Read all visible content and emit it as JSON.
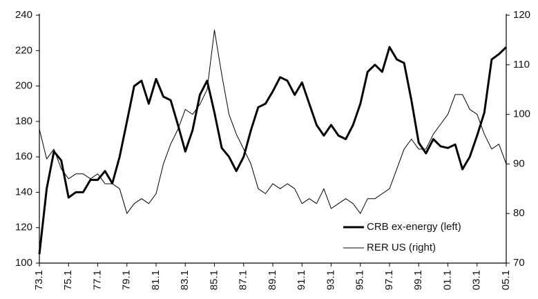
{
  "chart_data": {
    "type": "line",
    "categories": [
      "73.1",
      null,
      null,
      null,
      "75.1",
      null,
      null,
      null,
      "77.1",
      null,
      null,
      null,
      "79.1",
      null,
      null,
      null,
      "81.1",
      null,
      null,
      null,
      "83.1",
      null,
      null,
      null,
      "85.1",
      null,
      null,
      null,
      "87.1",
      null,
      null,
      null,
      "89.1",
      null,
      null,
      null,
      "91.1",
      null,
      null,
      null,
      "93.1",
      null,
      null,
      null,
      "95.1",
      null,
      null,
      null,
      "97.1",
      null,
      null,
      null,
      "99.1",
      null,
      null,
      null,
      "01.1",
      null,
      null,
      null,
      "03.1",
      null,
      null,
      null,
      "05.1"
    ],
    "series": [
      {
        "name": "CRB ex-energy (left)",
        "color": "#000000",
        "line_width": 3,
        "values": [
          105,
          142,
          163,
          158,
          137,
          140,
          140,
          147,
          147,
          152,
          145,
          160,
          180,
          200,
          203,
          190,
          204,
          194,
          192,
          178,
          163,
          175,
          195,
          203,
          185,
          165,
          160,
          152,
          160,
          175,
          188,
          190,
          197,
          205,
          203,
          195,
          202,
          190,
          178,
          172,
          178,
          172,
          170,
          178,
          190,
          208,
          212,
          208,
          222,
          215,
          213,
          192,
          168,
          162,
          170,
          166,
          165,
          167,
          153,
          160,
          172,
          185,
          215,
          218,
          222
        ]
      },
      {
        "name": "RER US (right)",
        "color": "#000000",
        "line_width": 1,
        "axis": "y2",
        "values": [
          97,
          91,
          93,
          89,
          87,
          88,
          88,
          87,
          88,
          86,
          86,
          85,
          80,
          82,
          83,
          82,
          84,
          90,
          94,
          97,
          101,
          100,
          102,
          105,
          117,
          108,
          100,
          96,
          93,
          90,
          85,
          84,
          86,
          85,
          86,
          85,
          82,
          83,
          82,
          85,
          81,
          82,
          83,
          82,
          80,
          83,
          83,
          84,
          85,
          89,
          93,
          95,
          93,
          93,
          96,
          98,
          100,
          104,
          104,
          101,
          100,
          96,
          93,
          94,
          90
        ]
      }
    ],
    "ylim": [
      100,
      240
    ],
    "yticks": [
      100,
      120,
      140,
      160,
      180,
      200,
      220,
      240
    ],
    "y2lim": [
      70,
      120
    ],
    "y2ticks": [
      70,
      80,
      90,
      100,
      110,
      120
    ],
    "legend": "lower right"
  }
}
